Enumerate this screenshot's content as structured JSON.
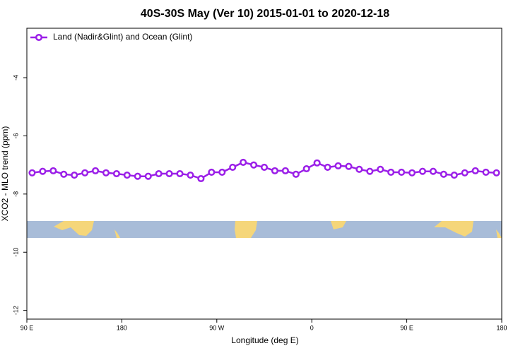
{
  "chart_data": {
    "type": "line",
    "title": "40S-30S May (Ver 10)   2015-01-01 to 2020-12-18",
    "x_label": "Longitude (deg E)",
    "y_label": "XCO2 - MLO trend (ppm)",
    "x": [
      95,
      105,
      115,
      125,
      135,
      145,
      155,
      165,
      175,
      185,
      195,
      205,
      215,
      225,
      235,
      245,
      255,
      265,
      275,
      285,
      295,
      305,
      315,
      325,
      335,
      345,
      355,
      365,
      375,
      385,
      395,
      405,
      415,
      425,
      435,
      445,
      455,
      465,
      475,
      485,
      495,
      505,
      515,
      525,
      535
    ],
    "series": [
      {
        "name": "Land (Nadir&Glint) and Ocean (Glint)",
        "color": "#9b1fe8",
        "values": [
          -7.27,
          -7.22,
          -7.2,
          -7.32,
          -7.35,
          -7.27,
          -7.2,
          -7.27,
          -7.3,
          -7.35,
          -7.39,
          -7.39,
          -7.3,
          -7.3,
          -7.3,
          -7.35,
          -7.47,
          -7.25,
          -7.25,
          -7.08,
          -6.91,
          -7.0,
          -7.08,
          -7.2,
          -7.2,
          -7.32,
          -7.13,
          -6.93,
          -7.08,
          -7.03,
          -7.05,
          -7.15,
          -7.22,
          -7.15,
          -7.25,
          -7.25,
          -7.27,
          -7.22,
          -7.22,
          -7.32,
          -7.35,
          -7.27,
          -7.2,
          -7.25,
          -7.27
        ]
      }
    ],
    "xlim": [
      90,
      540
    ],
    "xticks": [
      {
        "value": 90,
        "label": "90 E"
      },
      {
        "value": 180,
        "label": "180"
      },
      {
        "value": 270,
        "label": "90 W"
      },
      {
        "value": 360,
        "label": "0"
      },
      {
        "value": 450,
        "label": "90 E"
      },
      {
        "value": 540,
        "label": "180"
      }
    ],
    "ylim": [
      -12.3,
      -2.3
    ],
    "yticks": [
      -4,
      -6,
      -8,
      -10,
      -12
    ],
    "grid": false,
    "legend": "top-left"
  }
}
